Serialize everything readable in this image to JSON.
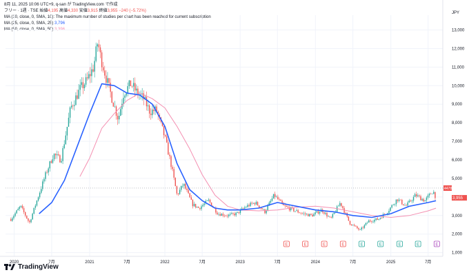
{
  "header": {
    "timestamp": "8月 11, 2025 10:06 UTC+9,  q-san が TradingView.com で作成",
    "symbol_line": {
      "name": "フリー · 1週 · TSE",
      "o_label": "始値",
      "o_val": "4,195",
      "h_label": "高値",
      "h_val": "4,330",
      "l_label": "安値",
      "l_val": "3,915",
      "c_label": "終値",
      "c_val": "3,955",
      "chg": "−240 (−5.72%)"
    },
    "studies": [
      {
        "label": "MA (10, close, 0, SMA, 10)",
        "value": "The maximum number of studies per chart has been reached for current subscription"
      },
      {
        "label": "MA (25, close, 0, SMA, 25)",
        "value": "3,796"
      },
      {
        "label": "MA (50, close, 0, SMA, 50)",
        "value": "3,396"
      }
    ]
  },
  "currency": "JPY",
  "brand": "TradingView",
  "colors": {
    "up": "#26a69a",
    "down": "#ef5350",
    "ma25": "#2962ff",
    "ma50": "#f48fb1",
    "grid": "#f0f3fa",
    "text": "#131722"
  },
  "chart_data": {
    "type": "candlestick",
    "title": "フリー · 1週 · TSE",
    "ylabel": "JPY",
    "ylim": [
      800,
      13800
    ],
    "y_ticks": [
      "1,000",
      "2,000",
      "3,000",
      "4,000",
      "5,000",
      "6,000",
      "7,000",
      "8,000",
      "9,000",
      "10,000",
      "11,000",
      "12,000",
      "13,000"
    ],
    "x_ticks": [
      {
        "label": "2020",
        "date": "2020-01-01"
      },
      {
        "label": "7月",
        "date": "2020-07-01"
      },
      {
        "label": "2021",
        "date": "2021-01-01"
      },
      {
        "label": "7月",
        "date": "2021-07-01"
      },
      {
        "label": "2022",
        "date": "2022-01-01"
      },
      {
        "label": "7月",
        "date": "2022-07-01"
      },
      {
        "label": "2023",
        "date": "2023-01-01"
      },
      {
        "label": "7月",
        "date": "2023-07-01"
      },
      {
        "label": "2024",
        "date": "2024-01-01"
      },
      {
        "label": "7月",
        "date": "2024-07-01"
      },
      {
        "label": "2025",
        "date": "2025-01-01"
      },
      {
        "label": "7月",
        "date": "2025-07-01"
      }
    ],
    "price_series": [
      [
        "2019-12-16",
        2800
      ],
      [
        "2020-02-01",
        3500
      ],
      [
        "2020-03-15",
        2600
      ],
      [
        "2020-04-20",
        3800
      ],
      [
        "2020-06-01",
        5200
      ],
      [
        "2020-07-10",
        6300
      ],
      [
        "2020-08-15",
        6000
      ],
      [
        "2020-10-01",
        8800
      ],
      [
        "2020-11-15",
        9800
      ],
      [
        "2020-12-20",
        10300
      ],
      [
        "2021-01-20",
        11000
      ],
      [
        "2021-02-10",
        12400
      ],
      [
        "2021-02-20",
        11700
      ],
      [
        "2021-03-20",
        10500
      ],
      [
        "2021-04-20",
        9300
      ],
      [
        "2021-05-20",
        8200
      ],
      [
        "2021-06-15",
        9600
      ],
      [
        "2021-07-20",
        10100
      ],
      [
        "2021-08-20",
        9600
      ],
      [
        "2021-09-20",
        9300
      ],
      [
        "2021-10-20",
        8600
      ],
      [
        "2021-11-20",
        8700
      ],
      [
        "2022-01-01",
        7200
      ],
      [
        "2022-02-01",
        5700
      ],
      [
        "2022-03-01",
        4100
      ],
      [
        "2022-04-01",
        4700
      ],
      [
        "2022-05-15",
        3600
      ],
      [
        "2022-06-15",
        3400
      ],
      [
        "2022-08-01",
        3800
      ],
      [
        "2022-09-15",
        3100
      ],
      [
        "2022-11-01",
        3000
      ],
      [
        "2022-12-15",
        3100
      ],
      [
        "2023-02-01",
        3500
      ],
      [
        "2023-03-15",
        3700
      ],
      [
        "2023-05-01",
        3200
      ],
      [
        "2023-06-15",
        4100
      ],
      [
        "2023-08-01",
        3500
      ],
      [
        "2023-09-15",
        3300
      ],
      [
        "2023-11-01",
        3100
      ],
      [
        "2023-12-15",
        3000
      ],
      [
        "2024-02-01",
        3300
      ],
      [
        "2024-03-15",
        2800
      ],
      [
        "2024-05-01",
        3700
      ],
      [
        "2024-06-15",
        2600
      ],
      [
        "2024-08-05",
        2200
      ],
      [
        "2024-09-15",
        2700
      ],
      [
        "2024-11-01",
        2800
      ],
      [
        "2024-12-15",
        3200
      ],
      [
        "2025-02-01",
        3900
      ],
      [
        "2025-03-15",
        3500
      ],
      [
        "2025-05-01",
        4100
      ],
      [
        "2025-06-15",
        3800
      ],
      [
        "2025-07-25",
        4330
      ],
      [
        "2025-08-08",
        3955
      ]
    ],
    "ma25": [
      [
        "2020-05-01",
        3100
      ],
      [
        "2020-07-01",
        3700
      ],
      [
        "2020-09-01",
        4900
      ],
      [
        "2020-11-01",
        6700
      ],
      [
        "2021-01-01",
        8500
      ],
      [
        "2021-03-01",
        10100
      ],
      [
        "2021-05-01",
        10000
      ],
      [
        "2021-07-01",
        9600
      ],
      [
        "2021-09-01",
        9500
      ],
      [
        "2021-11-01",
        9000
      ],
      [
        "2022-01-01",
        7800
      ],
      [
        "2022-03-01",
        5800
      ],
      [
        "2022-05-01",
        4400
      ],
      [
        "2022-07-01",
        3800
      ],
      [
        "2022-09-01",
        3400
      ],
      [
        "2022-11-01",
        3300
      ],
      [
        "2023-01-01",
        3300
      ],
      [
        "2023-04-01",
        3400
      ],
      [
        "2023-07-01",
        3700
      ],
      [
        "2023-10-01",
        3500
      ],
      [
        "2024-01-01",
        3300
      ],
      [
        "2024-04-01",
        3200
      ],
      [
        "2024-07-01",
        3000
      ],
      [
        "2024-10-01",
        2900
      ],
      [
        "2025-01-01",
        3100
      ],
      [
        "2025-04-01",
        3500
      ],
      [
        "2025-07-01",
        3700
      ],
      [
        "2025-08-08",
        3796
      ]
    ],
    "ma50": [
      [
        "2020-11-15",
        5100
      ],
      [
        "2021-01-01",
        6100
      ],
      [
        "2021-03-01",
        7700
      ],
      [
        "2021-05-01",
        8500
      ],
      [
        "2021-07-01",
        9200
      ],
      [
        "2021-09-01",
        9600
      ],
      [
        "2021-11-01",
        9300
      ],
      [
        "2022-01-01",
        8800
      ],
      [
        "2022-03-01",
        7800
      ],
      [
        "2022-05-01",
        6600
      ],
      [
        "2022-07-01",
        5200
      ],
      [
        "2022-09-01",
        4100
      ],
      [
        "2022-11-01",
        3500
      ],
      [
        "2023-01-01",
        3300
      ],
      [
        "2023-04-01",
        3250
      ],
      [
        "2023-07-01",
        3300
      ],
      [
        "2023-10-01",
        3450
      ],
      [
        "2024-01-01",
        3500
      ],
      [
        "2024-04-01",
        3400
      ],
      [
        "2024-07-01",
        3200
      ],
      [
        "2024-10-01",
        3000
      ],
      [
        "2025-01-01",
        2900
      ],
      [
        "2025-04-01",
        3000
      ],
      [
        "2025-07-01",
        3250
      ],
      [
        "2025-08-08",
        3396
      ]
    ],
    "last_price_label": "4478",
    "last_close_label": "3,955",
    "events": [
      {
        "type": "earnings",
        "date": "2023-08-14",
        "label": "E"
      },
      {
        "type": "earnings",
        "date": "2023-11-13",
        "label": "E"
      },
      {
        "type": "earnings",
        "date": "2024-02-13",
        "label": "E"
      },
      {
        "type": "earnings",
        "date": "2024-05-14",
        "label": "E"
      },
      {
        "type": "earnings",
        "date": "2024-08-13",
        "label": "E"
      },
      {
        "type": "earnings",
        "date": "2024-11-12",
        "label": "E"
      },
      {
        "type": "earnings",
        "date": "2025-02-13",
        "label": "E"
      },
      {
        "type": "earnings",
        "date": "2025-05-13",
        "label": "E"
      },
      {
        "type": "earnings",
        "date": "2025-08-12",
        "label": "E"
      }
    ]
  }
}
